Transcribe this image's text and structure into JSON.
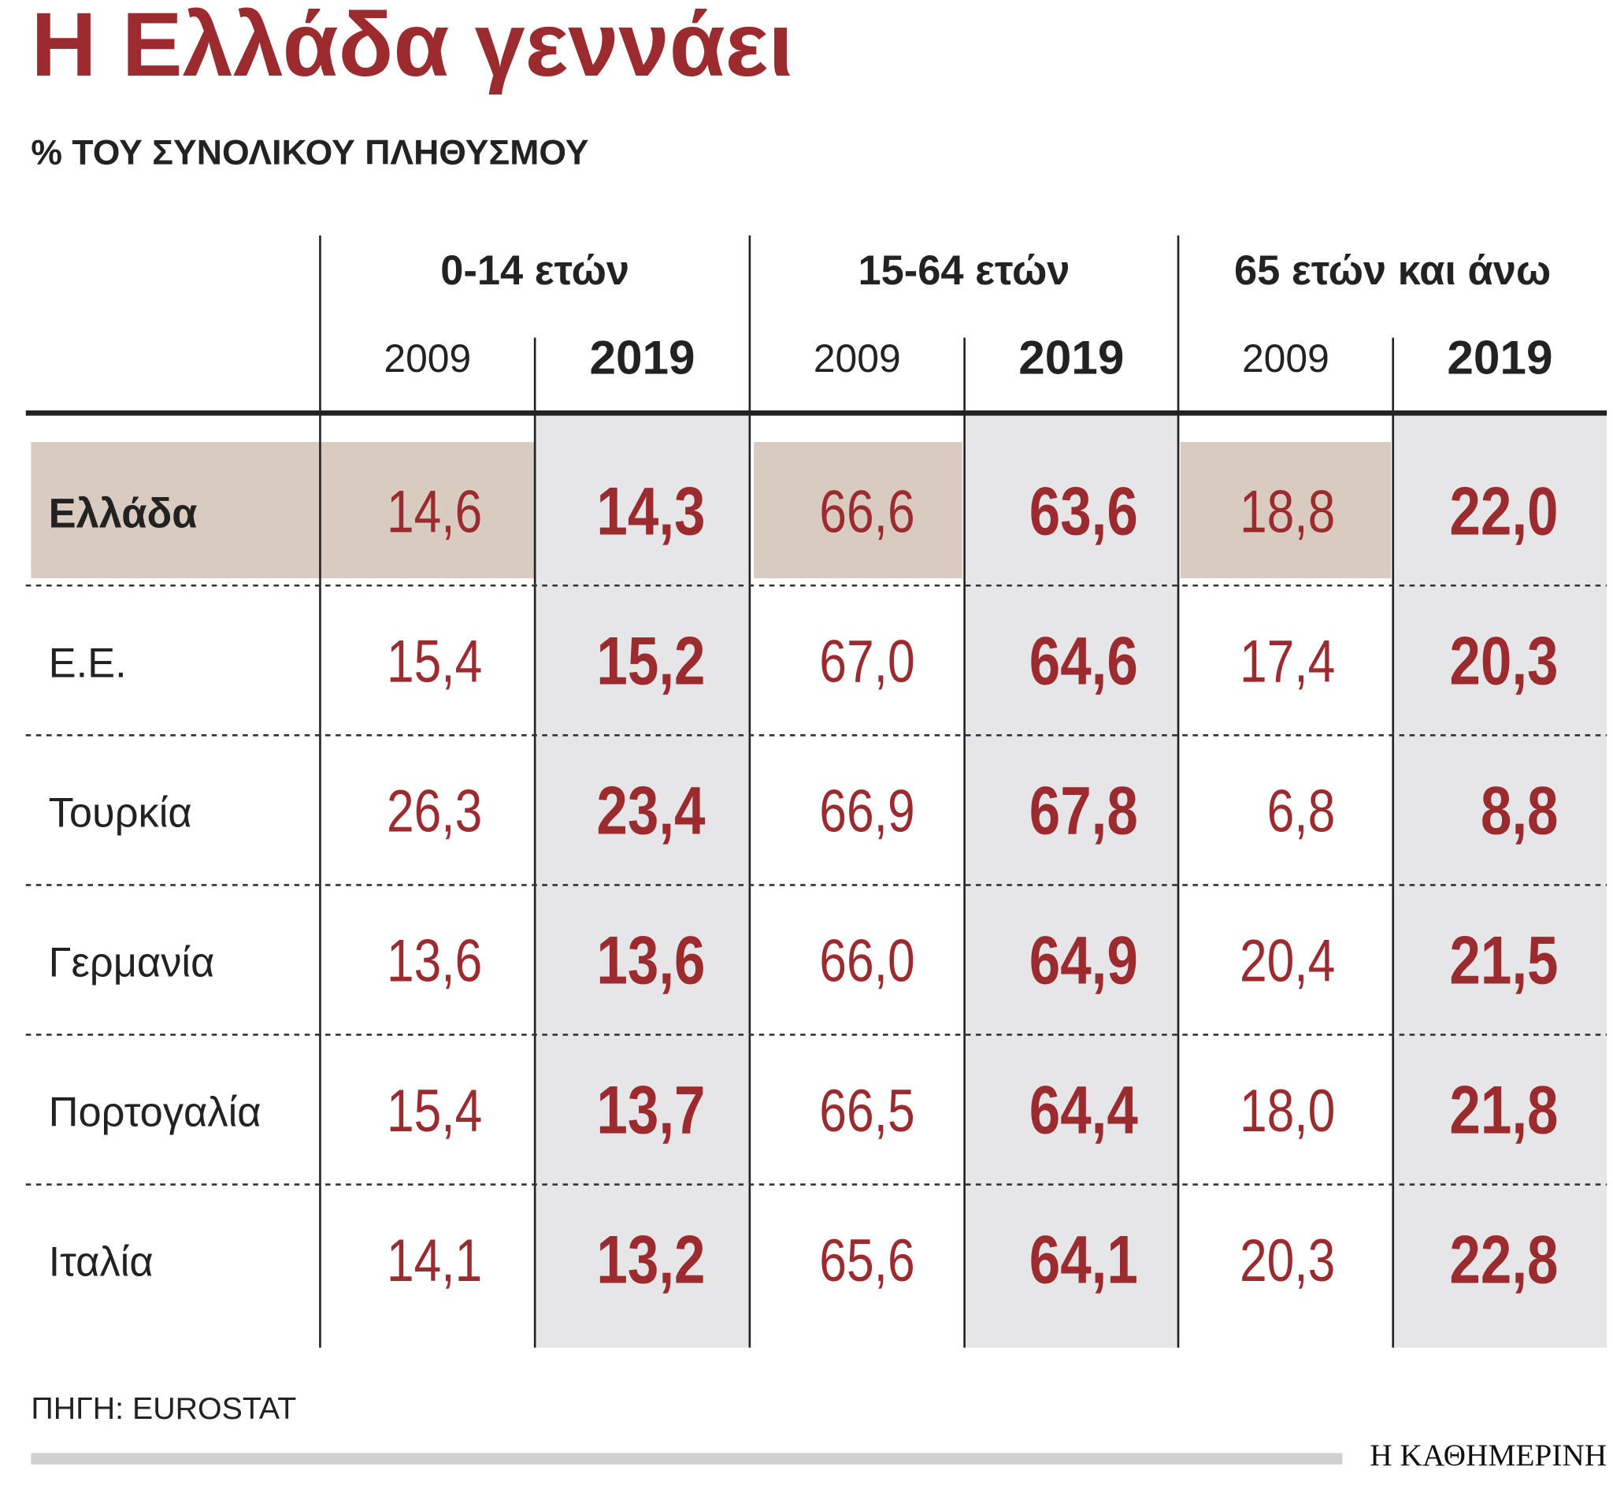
{
  "header": {
    "title": "Η Ελλάδα γεννάει",
    "subtitle": "% ΤΟΥ ΣΥΝΟΛΙΚΟΥ ΠΛΗΘΥΣΜΟΥ"
  },
  "table": {
    "groups": [
      {
        "label": "0-14 ετών",
        "years": [
          "2009",
          "2019"
        ]
      },
      {
        "label": "15-64 ετών",
        "years": [
          "2009",
          "2019"
        ]
      },
      {
        "label": "65 ετών και άνω",
        "years": [
          "2009",
          "2019"
        ]
      }
    ],
    "rows": [
      {
        "name": "Ελλάδα",
        "values": [
          "14,6",
          "14,3",
          "66,6",
          "63,6",
          "18,8",
          "22,0"
        ]
      },
      {
        "name": "Ε.Ε.",
        "values": [
          "15,4",
          "15,2",
          "67,0",
          "64,6",
          "17,4",
          "20,3"
        ]
      },
      {
        "name": "Τουρκία",
        "values": [
          "26,3",
          "23,4",
          "66,9",
          "67,8",
          "6,8",
          "8,8"
        ]
      },
      {
        "name": "Γερμανία",
        "values": [
          "13,6",
          "13,6",
          "66,0",
          "64,9",
          "20,4",
          "21,5"
        ]
      },
      {
        "name": "Πορτογαλία",
        "values": [
          "15,4",
          "13,7",
          "66,5",
          "64,4",
          "18,0",
          "21,8"
        ]
      },
      {
        "name": "Ιταλία",
        "values": [
          "14,1",
          "13,2",
          "65,6",
          "64,1",
          "20,3",
          "22,8"
        ]
      }
    ]
  },
  "footer": {
    "source": "ΠΗΓΗ: EUROSTAT",
    "logo": "Η ΚΑΘΗΜΕΡΙΝΗ"
  }
}
